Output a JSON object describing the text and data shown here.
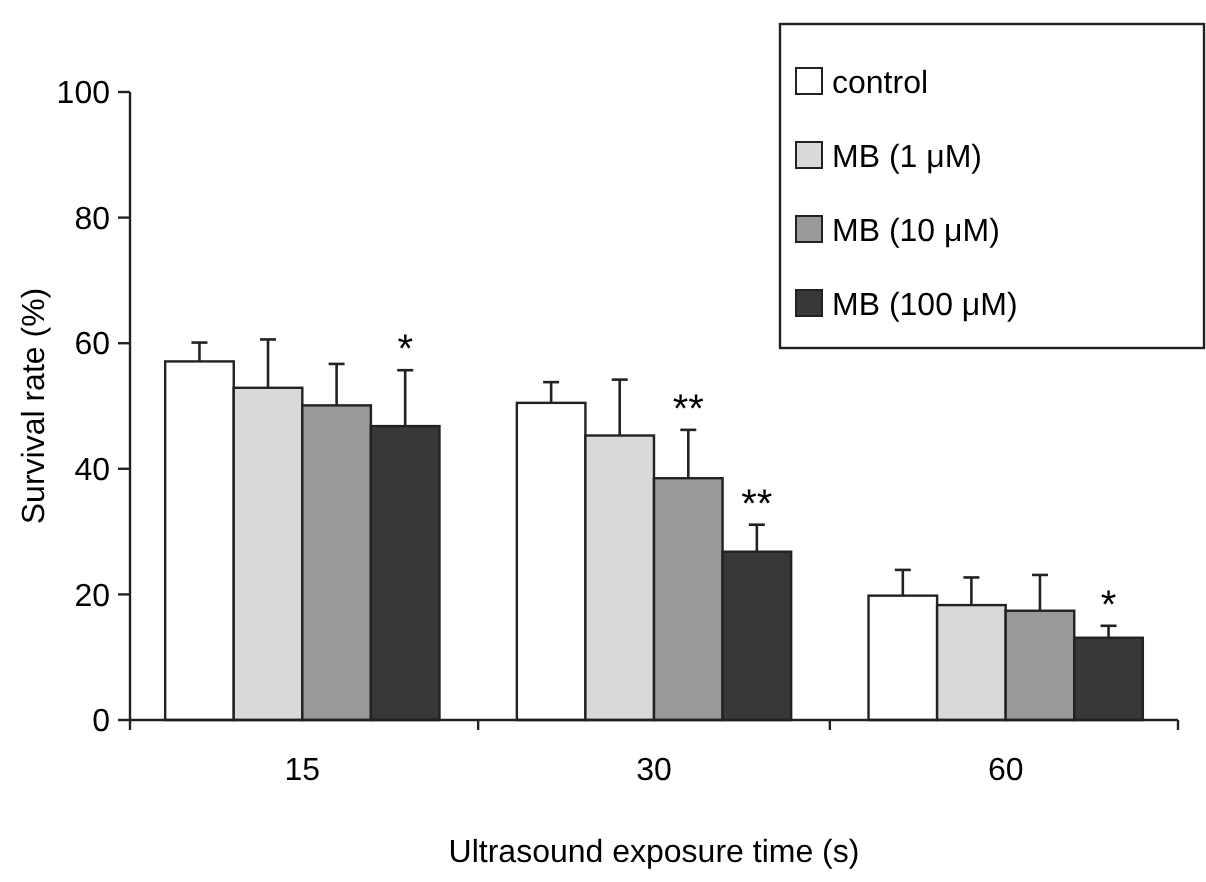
{
  "chart_data": {
    "type": "bar",
    "xlabel": "Ultrasound exposure time (s)",
    "ylabel": "Survival rate (%)",
    "categories": [
      "15",
      "30",
      "60"
    ],
    "ylim": [
      0,
      100
    ],
    "yticks": [
      0,
      20,
      40,
      60,
      80,
      100
    ],
    "grid": false,
    "legend": "top right",
    "series": [
      {
        "name": "control",
        "color": "#ffffff",
        "values": [
          57.1,
          50.5,
          19.8
        ],
        "errors": [
          [
            57.1,
            60.1
          ],
          [
            50.5,
            53.8
          ],
          [
            19.8,
            23.9
          ]
        ]
      },
      {
        "name": "MB (1 μM)",
        "color": "#d9d9d9",
        "values": [
          52.9,
          45.3,
          18.3
        ],
        "errors": [
          [
            52.9,
            60.6
          ],
          [
            45.3,
            54.2
          ],
          [
            18.3,
            22.7
          ]
        ]
      },
      {
        "name": "MB (10 μM)",
        "color": "#999999",
        "values": [
          50.1,
          38.5,
          17.4
        ],
        "errors": [
          [
            50.1,
            56.7
          ],
          [
            38.5,
            46.2
          ],
          [
            17.4,
            23.1
          ]
        ]
      },
      {
        "name": "MB (100 μM)",
        "color": "#383838",
        "values": [
          46.8,
          26.8,
          13.1
        ],
        "errors": [
          [
            46.8,
            55.7
          ],
          [
            26.8,
            31.1
          ],
          [
            13.1,
            15.0
          ]
        ]
      }
    ],
    "annotations": [
      {
        "text": "*",
        "x": "15",
        "y": 46.8
      },
      {
        "text": "**",
        "x": "30",
        "y": 38.5
      },
      {
        "text": "**",
        "x": "30",
        "y": 26.8
      },
      {
        "text": "*",
        "x": "60",
        "y": 13.1
      }
    ]
  }
}
